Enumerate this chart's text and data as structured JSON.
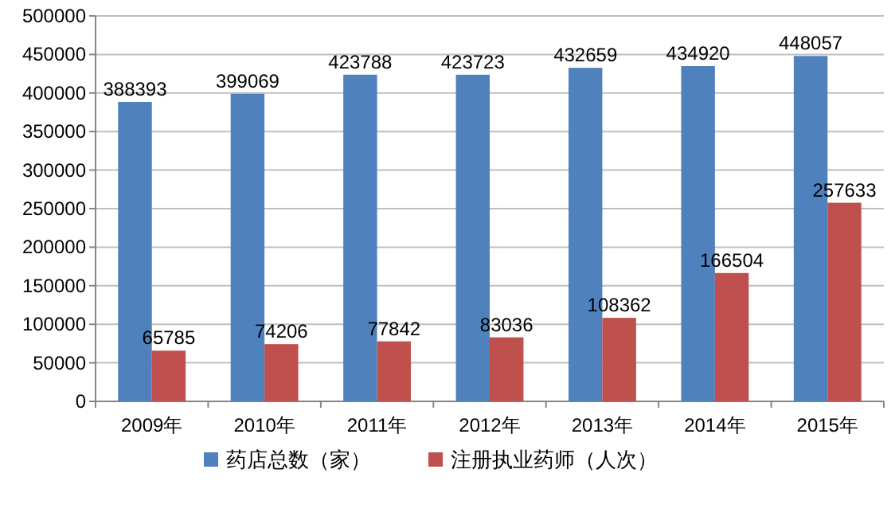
{
  "chart_data": {
    "type": "bar",
    "categories": [
      "2009年",
      "2010年",
      "2011年",
      "2012年",
      "2013年",
      "2014年",
      "2015年"
    ],
    "series": [
      {
        "name": "药店总数（家）",
        "color": "#4f81bd",
        "values": [
          388393,
          399069,
          423788,
          423723,
          432659,
          434920,
          448057
        ]
      },
      {
        "name": "注册执业药师（人次）",
        "color": "#c0504d",
        "values": [
          65785,
          74206,
          77842,
          83036,
          108362,
          166504,
          257633
        ]
      }
    ],
    "ylim": [
      0,
      500000
    ],
    "yticks": [
      0,
      50000,
      100000,
      150000,
      200000,
      250000,
      300000,
      350000,
      400000,
      450000,
      500000
    ],
    "grid": "y",
    "legend": "bottom",
    "data_labels": true
  }
}
